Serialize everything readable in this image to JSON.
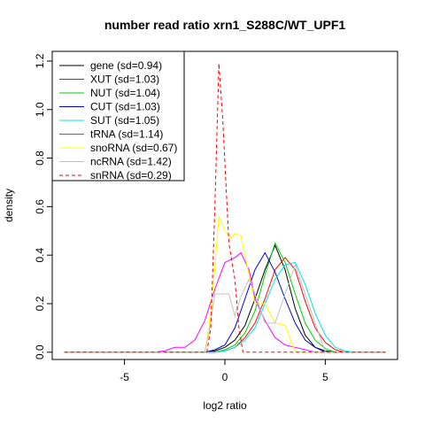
{
  "chart_data": {
    "type": "line",
    "title": "number read ratio xrn1_S288C/WT_UPF1",
    "xlabel": "log2 ratio",
    "ylabel": "density",
    "xlim": [
      -8.6,
      8.6
    ],
    "ylim": [
      -0.03,
      1.24
    ],
    "x_ticks": [
      -5,
      0,
      5
    ],
    "x_tick_labels": [
      "-5",
      "0",
      "5"
    ],
    "y_ticks": [
      0.0,
      0.2,
      0.4,
      0.6,
      0.8,
      1.0,
      1.2
    ],
    "y_tick_labels": [
      "0.0",
      "0.2",
      "0.4",
      "0.6",
      "0.8",
      "1.0",
      "1.2"
    ],
    "grid": false,
    "legend_position": "top-left",
    "series": [
      {
        "name": "gene (sd=0.94)",
        "color": "#000000",
        "dash": "solid",
        "points": [
          [
            -8,
            0
          ],
          [
            -1,
            0
          ],
          [
            -0.5,
            0.005
          ],
          [
            0,
            0.02
          ],
          [
            0.5,
            0.05
          ],
          [
            1,
            0.11
          ],
          [
            1.5,
            0.22
          ],
          [
            2,
            0.34
          ],
          [
            2.5,
            0.44
          ],
          [
            3,
            0.34
          ],
          [
            3.5,
            0.18
          ],
          [
            4,
            0.07
          ],
          [
            4.5,
            0.02
          ],
          [
            5,
            0.005
          ],
          [
            5.5,
            0
          ],
          [
            8,
            0
          ]
        ]
      },
      {
        "name": "XUT (sd=1.03)",
        "color": "#ff0000",
        "dash": "solid",
        "points": [
          [
            -8,
            0
          ],
          [
            -0.5,
            0
          ],
          [
            0,
            0.005
          ],
          [
            0.5,
            0.02
          ],
          [
            1,
            0.06
          ],
          [
            1.5,
            0.12
          ],
          [
            2,
            0.22
          ],
          [
            2.5,
            0.34
          ],
          [
            3,
            0.39
          ],
          [
            3.5,
            0.34
          ],
          [
            4,
            0.21
          ],
          [
            4.5,
            0.1
          ],
          [
            5,
            0.04
          ],
          [
            5.5,
            0.01
          ],
          [
            6,
            0
          ],
          [
            8,
            0
          ]
        ]
      },
      {
        "name": "NUT (sd=1.04)",
        "color": "#00cc00",
        "dash": "solid",
        "points": [
          [
            -8,
            0
          ],
          [
            -0.5,
            0
          ],
          [
            0,
            0.01
          ],
          [
            0.5,
            0.03
          ],
          [
            1,
            0.08
          ],
          [
            1.5,
            0.17
          ],
          [
            2,
            0.32
          ],
          [
            2.5,
            0.45
          ],
          [
            3,
            0.37
          ],
          [
            3.5,
            0.24
          ],
          [
            4,
            0.12
          ],
          [
            4.5,
            0.05
          ],
          [
            5,
            0.015
          ],
          [
            5.5,
            0
          ],
          [
            8,
            0
          ]
        ]
      },
      {
        "name": "CUT (sd=1.03)",
        "color": "#0000cc",
        "dash": "solid",
        "points": [
          [
            -8,
            0
          ],
          [
            -1,
            0
          ],
          [
            -0.5,
            0.01
          ],
          [
            0,
            0.03
          ],
          [
            0.5,
            0.1
          ],
          [
            1,
            0.22
          ],
          [
            1.5,
            0.34
          ],
          [
            2,
            0.41
          ],
          [
            2.5,
            0.33
          ],
          [
            3,
            0.22
          ],
          [
            3.5,
            0.12
          ],
          [
            4,
            0.05
          ],
          [
            4.5,
            0.02
          ],
          [
            5,
            0
          ],
          [
            8,
            0
          ]
        ]
      },
      {
        "name": "SUT (sd=1.05)",
        "color": "#00e5e5",
        "dash": "solid",
        "points": [
          [
            -8,
            0
          ],
          [
            -0.5,
            0
          ],
          [
            0,
            0.005
          ],
          [
            0.5,
            0.02
          ],
          [
            1,
            0.05
          ],
          [
            1.5,
            0.1
          ],
          [
            2,
            0.2
          ],
          [
            2.5,
            0.3
          ],
          [
            3,
            0.36
          ],
          [
            3.5,
            0.37
          ],
          [
            4,
            0.28
          ],
          [
            4.5,
            0.16
          ],
          [
            5,
            0.07
          ],
          [
            5.5,
            0.02
          ],
          [
            6,
            0.005
          ],
          [
            6.5,
            0
          ],
          [
            8,
            0
          ]
        ]
      },
      {
        "name": "tRNA (sd=1.14)",
        "color": "#ff00ff",
        "dash": "solid",
        "points": [
          [
            -8,
            0
          ],
          [
            -3.5,
            0
          ],
          [
            -3,
            0.005
          ],
          [
            -2.5,
            0.02
          ],
          [
            -2,
            0.02
          ],
          [
            -1.5,
            0.05
          ],
          [
            -1,
            0.13
          ],
          [
            -0.5,
            0.26
          ],
          [
            0,
            0.37
          ],
          [
            0.5,
            0.39
          ],
          [
            0.8,
            0.41
          ],
          [
            1.2,
            0.34
          ],
          [
            1.5,
            0.22
          ],
          [
            2,
            0.13
          ],
          [
            2.5,
            0.06
          ],
          [
            3,
            0.03
          ],
          [
            3.5,
            0.02
          ],
          [
            4,
            0.01
          ],
          [
            4.5,
            0
          ],
          [
            8,
            0
          ]
        ]
      },
      {
        "name": "snoRNA (sd=0.67)",
        "color": "#ffff00",
        "dash": "solid",
        "points": [
          [
            -8,
            0
          ],
          [
            -1,
            0
          ],
          [
            -0.8,
            0.1
          ],
          [
            -0.5,
            0.35
          ],
          [
            -0.3,
            0.56
          ],
          [
            0,
            0.5
          ],
          [
            0.3,
            0.47
          ],
          [
            0.5,
            0.49
          ],
          [
            0.8,
            0.48
          ],
          [
            1.2,
            0.32
          ],
          [
            1.5,
            0.2
          ],
          [
            2,
            0.2
          ],
          [
            2.5,
            0.12
          ],
          [
            3,
            0.11
          ],
          [
            3.5,
            0
          ],
          [
            8,
            0
          ]
        ]
      },
      {
        "name": "ncRNA (sd=1.42)",
        "color": "#c0c0c0",
        "dash": "solid",
        "points": [
          [
            -8,
            0
          ],
          [
            -1,
            0
          ],
          [
            -0.8,
            0.08
          ],
          [
            -0.5,
            0.24
          ],
          [
            0.2,
            0.24
          ],
          [
            0.5,
            0.15
          ],
          [
            0.8,
            0.23
          ],
          [
            1.2,
            0.3
          ],
          [
            1.5,
            0.24
          ],
          [
            2,
            0.12
          ],
          [
            2.5,
            0.12
          ],
          [
            3,
            0.24
          ],
          [
            3.5,
            0.36
          ],
          [
            4,
            0.24
          ],
          [
            4.5,
            0.12
          ],
          [
            5,
            0
          ],
          [
            8,
            0
          ]
        ]
      },
      {
        "name": "snRNA (sd=0.29)",
        "color": "#ff0000",
        "dash": "dashed",
        "points": [
          [
            -8,
            0
          ],
          [
            -0.9,
            0
          ],
          [
            -0.7,
            0.1
          ],
          [
            -0.5,
            0.6
          ],
          [
            -0.3,
            1.19
          ],
          [
            -0.1,
            0.95
          ],
          [
            0.2,
            0.45
          ],
          [
            0.5,
            0.3
          ],
          [
            0.7,
            0.1
          ],
          [
            0.9,
            0
          ],
          [
            8,
            0
          ]
        ]
      }
    ]
  }
}
